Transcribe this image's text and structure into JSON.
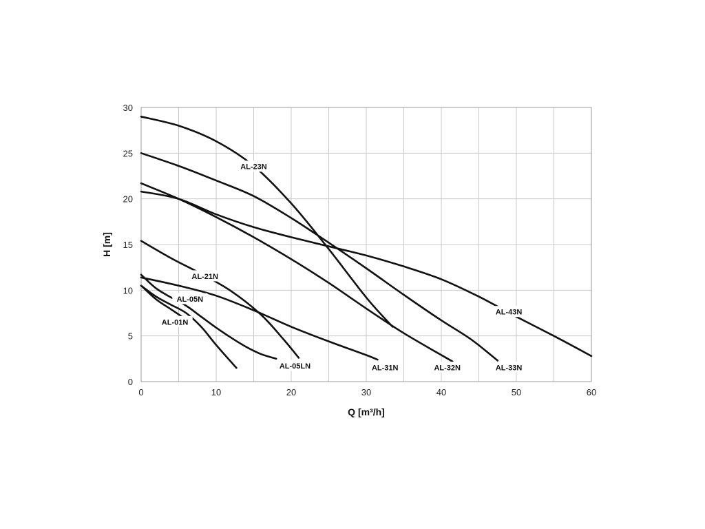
{
  "chart_data": {
    "type": "line",
    "xlabel": "Q [m³/h]",
    "ylabel": "H [m]",
    "xlim": [
      0,
      60
    ],
    "ylim": [
      0,
      30
    ],
    "x_ticks": [
      0,
      10,
      20,
      30,
      40,
      50,
      60
    ],
    "y_ticks": [
      0,
      5,
      10,
      15,
      20,
      25,
      30
    ],
    "grid": true,
    "series": [
      {
        "name": "AL-01N",
        "label_at": [
          4.5,
          6.5
        ],
        "points": [
          [
            0,
            10.5
          ],
          [
            2,
            9.0
          ],
          [
            4,
            7.9
          ],
          [
            6,
            6.8
          ]
        ]
      },
      {
        "name": "AL-05N",
        "label_at": [
          6.5,
          9.0
        ],
        "points": [
          [
            0,
            10.5
          ],
          [
            2,
            9.3
          ],
          [
            4,
            8.4
          ],
          [
            6,
            7.5
          ],
          [
            8,
            6.0
          ],
          [
            10,
            4.0
          ],
          [
            12.7,
            1.5
          ]
        ]
      },
      {
        "name": "AL-05LN",
        "label_at": [
          20.5,
          1.7
        ],
        "points": [
          [
            0,
            11.7
          ],
          [
            2,
            10.2
          ],
          [
            4,
            9.2
          ],
          [
            6,
            8.3
          ],
          [
            8,
            7.1
          ],
          [
            10,
            5.9
          ],
          [
            12,
            4.8
          ],
          [
            14,
            3.8
          ],
          [
            16,
            3.0
          ],
          [
            18,
            2.5
          ]
        ]
      },
      {
        "name": "AL-21N",
        "label_at": [
          8.5,
          11.5
        ],
        "points": [
          [
            0,
            15.4
          ],
          [
            4,
            13.5
          ],
          [
            8,
            11.8
          ],
          [
            12,
            9.9
          ],
          [
            16,
            7.3
          ],
          [
            19,
            4.6
          ],
          [
            21,
            2.6
          ]
        ]
      },
      {
        "name": "AL-23N",
        "label_at": [
          15,
          23.5
        ],
        "points": [
          [
            0,
            29.0
          ],
          [
            5,
            28.0
          ],
          [
            10,
            26.3
          ],
          [
            15,
            23.6
          ],
          [
            20,
            19.5
          ],
          [
            25,
            14.5
          ],
          [
            30,
            9.2
          ],
          [
            33.5,
            6.0
          ]
        ]
      },
      {
        "name": "AL-31N",
        "label_at": [
          32.5,
          1.5
        ],
        "points": [
          [
            0,
            11.4
          ],
          [
            5,
            10.5
          ],
          [
            10,
            9.4
          ],
          [
            15,
            7.8
          ],
          [
            20,
            6.0
          ],
          [
            25,
            4.4
          ],
          [
            30,
            2.9
          ],
          [
            31.5,
            2.4
          ]
        ]
      },
      {
        "name": "AL-32N",
        "label_at": [
          40.8,
          1.5
        ],
        "points": [
          [
            0,
            21.7
          ],
          [
            5,
            20.0
          ],
          [
            10,
            18.0
          ],
          [
            15,
            15.8
          ],
          [
            20,
            13.4
          ],
          [
            25,
            10.8
          ],
          [
            30,
            8.0
          ],
          [
            35,
            5.3
          ],
          [
            41.5,
            2.2
          ]
        ]
      },
      {
        "name": "AL-33N",
        "label_at": [
          49,
          1.5
        ],
        "points": [
          [
            0,
            25.0
          ],
          [
            5,
            23.6
          ],
          [
            10,
            22.0
          ],
          [
            15,
            20.3
          ],
          [
            20,
            17.9
          ],
          [
            25,
            15.2
          ],
          [
            30,
            12.4
          ],
          [
            35,
            9.5
          ],
          [
            40,
            6.7
          ],
          [
            44,
            4.6
          ],
          [
            47.5,
            2.3
          ]
        ]
      },
      {
        "name": "AL-43N",
        "label_at": [
          49,
          7.6
        ],
        "points": [
          [
            0,
            20.8
          ],
          [
            5,
            20.0
          ],
          [
            10,
            18.3
          ],
          [
            15,
            16.9
          ],
          [
            20,
            15.8
          ],
          [
            25,
            14.8
          ],
          [
            30,
            13.8
          ],
          [
            35,
            12.6
          ],
          [
            40,
            11.2
          ],
          [
            45,
            9.3
          ],
          [
            50,
            7.1
          ],
          [
            55,
            5.0
          ],
          [
            60,
            2.8
          ]
        ]
      }
    ]
  }
}
